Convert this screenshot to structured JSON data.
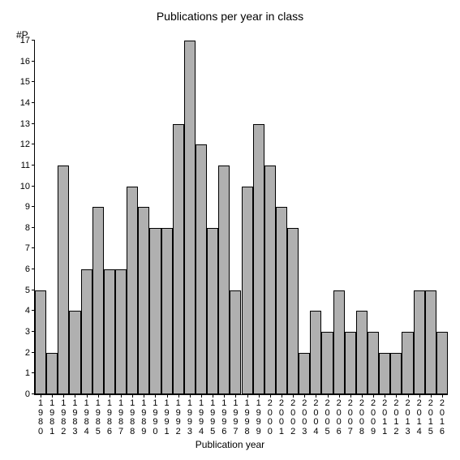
{
  "chart": {
    "type": "bar",
    "title": "Publications per year in class",
    "title_fontsize": 14,
    "ylabel": "#P",
    "xlabel": "Publication year",
    "label_fontsize": 12,
    "tick_fontsize": 11,
    "background_color": "#ffffff",
    "bar_color": "#b0b0b0",
    "bar_border_color": "#000000",
    "axis_color": "#000000",
    "text_color": "#000000",
    "ylim": [
      0,
      17
    ],
    "ytick_step": 1,
    "bar_width": 1.0,
    "categories": [
      "1980",
      "1981",
      "1982",
      "1983",
      "1984",
      "1985",
      "1986",
      "1987",
      "1988",
      "1989",
      "1990",
      "1991",
      "1992",
      "1993",
      "1994",
      "1995",
      "1996",
      "1997",
      "1998",
      "1999",
      "2000",
      "2001",
      "2002",
      "2003",
      "2004",
      "2005",
      "2006",
      "2007",
      "2008",
      "2009",
      "2011",
      "2012",
      "2013",
      "2014",
      "2015",
      "2016"
    ],
    "values": [
      5,
      2,
      11,
      4,
      6,
      9,
      6,
      6,
      10,
      9,
      8,
      8,
      13,
      17,
      12,
      8,
      11,
      5,
      10,
      13,
      11,
      9,
      8,
      2,
      4,
      3,
      5,
      3,
      4,
      3,
      2,
      2,
      3,
      5,
      5,
      3
    ]
  }
}
